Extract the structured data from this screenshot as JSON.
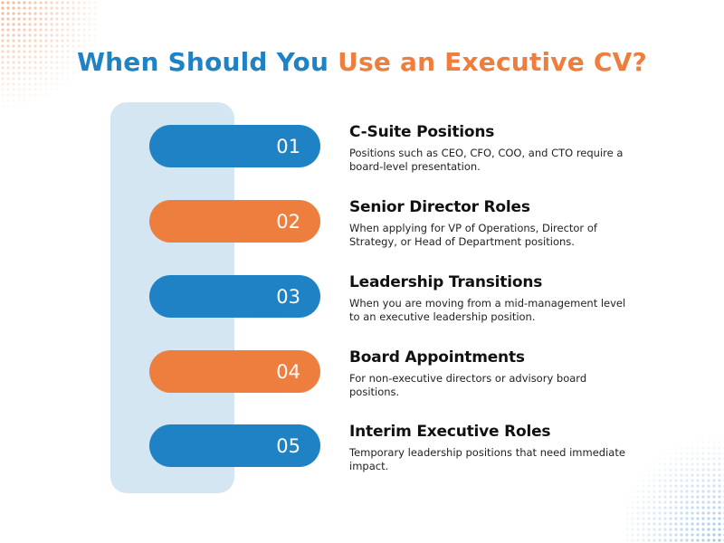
{
  "title": {
    "part1": "When Should You",
    "part2": "Use an Executive CV?"
  },
  "colors": {
    "blue": "#1f82c4",
    "orange": "#ee7e3e",
    "panel": "#d3e6f2"
  },
  "items": [
    {
      "number": "01",
      "color": "blue",
      "heading": "C-Suite Positions",
      "description": "Positions such as CEO, CFO, COO, and CTO require a board-level presentation."
    },
    {
      "number": "02",
      "color": "orange",
      "heading": "Senior Director Roles",
      "description": "When applying for VP of Operations, Director of Strategy, or Head of Department positions."
    },
    {
      "number": "03",
      "color": "blue",
      "heading": "Leadership Transitions",
      "description": "When you are moving from a mid-management level to an executive leadership position."
    },
    {
      "number": "04",
      "color": "orange",
      "heading": "Board Appointments",
      "description": "For non-executive directors or advisory board positions."
    },
    {
      "number": "05",
      "color": "blue",
      "heading": "Interim Executive Roles",
      "description": "Temporary leadership positions that need immediate impact."
    }
  ]
}
